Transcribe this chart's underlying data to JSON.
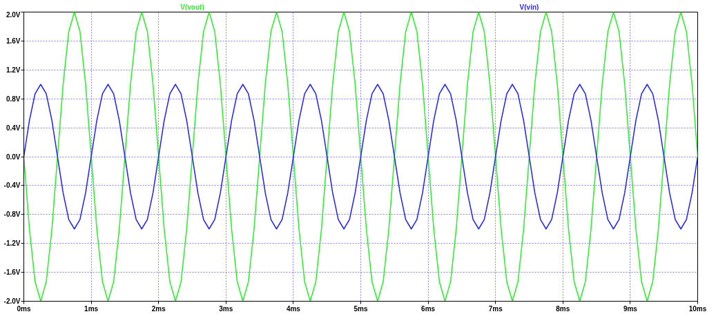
{
  "chart_data": {
    "type": "line",
    "grid": true,
    "marker": "none",
    "line_style": "solid",
    "xlim": [
      0,
      10
    ],
    "ylim": [
      -2,
      2
    ],
    "xticks": [
      {
        "value": 0,
        "label": "0ms"
      },
      {
        "value": 1,
        "label": "1ms"
      },
      {
        "value": 2,
        "label": "2ms"
      },
      {
        "value": 3,
        "label": "3ms"
      },
      {
        "value": 4,
        "label": "4ms"
      },
      {
        "value": 5,
        "label": "5ms"
      },
      {
        "value": 6,
        "label": "6ms"
      },
      {
        "value": 7,
        "label": "7ms"
      },
      {
        "value": 8,
        "label": "8ms"
      },
      {
        "value": 9,
        "label": "9ms"
      },
      {
        "value": 10,
        "label": "10ms"
      }
    ],
    "yticks": [
      {
        "value": -2.0,
        "label": "-2.0V"
      },
      {
        "value": -1.6,
        "label": "-1.6V"
      },
      {
        "value": -1.2,
        "label": "-1.2V"
      },
      {
        "value": -0.8,
        "label": "-0.8V"
      },
      {
        "value": -0.4,
        "label": "-0.4V"
      },
      {
        "value": 0.0,
        "label": "0.0V"
      },
      {
        "value": 0.4,
        "label": "0.4V"
      },
      {
        "value": 0.8,
        "label": "0.8V"
      },
      {
        "value": 1.2,
        "label": "1.2V"
      },
      {
        "value": 1.6,
        "label": "1.6V"
      },
      {
        "value": 2.0,
        "label": "2.0V"
      }
    ],
    "x": [
      0,
      0.083,
      0.167,
      0.25,
      0.333,
      0.417,
      0.5,
      0.583,
      0.667,
      0.75,
      0.833,
      0.917,
      1,
      1.083,
      1.167,
      1.25,
      1.333,
      1.417,
      1.5,
      1.583,
      1.667,
      1.75,
      1.833,
      1.917,
      2,
      2.083,
      2.167,
      2.25,
      2.333,
      2.417,
      2.5,
      2.583,
      2.667,
      2.75,
      2.833,
      2.917,
      3,
      3.083,
      3.167,
      3.25,
      3.333,
      3.417,
      3.5,
      3.583,
      3.667,
      3.75,
      3.833,
      3.917,
      4,
      4.083,
      4.167,
      4.25,
      4.333,
      4.417,
      4.5,
      4.583,
      4.667,
      4.75,
      4.833,
      4.917,
      5,
      5.083,
      5.167,
      5.25,
      5.333,
      5.417,
      5.5,
      5.583,
      5.667,
      5.75,
      5.833,
      5.917,
      6,
      6.083,
      6.167,
      6.25,
      6.333,
      6.417,
      6.5,
      6.583,
      6.667,
      6.75,
      6.833,
      6.917,
      7,
      7.083,
      7.167,
      7.25,
      7.333,
      7.417,
      7.5,
      7.583,
      7.667,
      7.75,
      7.833,
      7.917,
      8,
      8.083,
      8.167,
      8.25,
      8.333,
      8.417,
      8.5,
      8.583,
      8.667,
      8.75,
      8.833,
      8.917,
      9,
      9.083,
      9.167,
      9.25,
      9.333,
      9.417,
      9.5,
      9.583,
      9.667,
      9.75,
      9.833,
      9.917,
      10
    ],
    "series": [
      {
        "name": "V(vout)",
        "color": "#33ee33",
        "values": [
          0,
          -1,
          -1.73,
          -2,
          -1.73,
          -1,
          0,
          1,
          1.73,
          2,
          1.73,
          1,
          0,
          -1,
          -1.73,
          -2,
          -1.73,
          -1,
          0,
          1,
          1.73,
          2,
          1.73,
          1,
          0,
          -1,
          -1.73,
          -2,
          -1.73,
          -1,
          0,
          1,
          1.73,
          2,
          1.73,
          1,
          0,
          -1,
          -1.73,
          -2,
          -1.73,
          -1,
          0,
          1,
          1.73,
          2,
          1.73,
          1,
          0,
          -1,
          -1.73,
          -2,
          -1.73,
          -1,
          0,
          1,
          1.73,
          2,
          1.73,
          1,
          0,
          -1,
          -1.73,
          -2,
          -1.73,
          -1,
          0,
          1,
          1.73,
          2,
          1.73,
          1,
          0,
          -1,
          -1.73,
          -2,
          -1.73,
          -1,
          0,
          1,
          1.73,
          2,
          1.73,
          1,
          0,
          -1,
          -1.73,
          -2,
          -1.73,
          -1,
          0,
          1,
          1.73,
          2,
          1.73,
          1,
          0,
          -1,
          -1.73,
          -2,
          -1.73,
          -1,
          0,
          1,
          1.73,
          2,
          1.73,
          1,
          0,
          -1,
          -1.73,
          -2,
          -1.73,
          -1,
          0,
          1,
          1.73,
          2,
          1.73,
          1,
          0
        ]
      },
      {
        "name": "V(vin)",
        "color": "#2b2bee",
        "values": [
          0,
          0.5,
          0.87,
          1,
          0.87,
          0.5,
          0,
          -0.5,
          -0.87,
          -1,
          -0.87,
          -0.5,
          0,
          0.5,
          0.87,
          1,
          0.87,
          0.5,
          0,
          -0.5,
          -0.87,
          -1,
          -0.87,
          -0.5,
          0,
          0.5,
          0.87,
          1,
          0.87,
          0.5,
          0,
          -0.5,
          -0.87,
          -1,
          -0.87,
          -0.5,
          0,
          0.5,
          0.87,
          1,
          0.87,
          0.5,
          0,
          -0.5,
          -0.87,
          -1,
          -0.87,
          -0.5,
          0,
          0.5,
          0.87,
          1,
          0.87,
          0.5,
          0,
          -0.5,
          -0.87,
          -1,
          -0.87,
          -0.5,
          0,
          0.5,
          0.87,
          1,
          0.87,
          0.5,
          0,
          -0.5,
          -0.87,
          -1,
          -0.87,
          -0.5,
          0,
          0.5,
          0.87,
          1,
          0.87,
          0.5,
          0,
          -0.5,
          -0.87,
          -1,
          -0.87,
          -0.5,
          0,
          0.5,
          0.87,
          1,
          0.87,
          0.5,
          0,
          -0.5,
          -0.87,
          -1,
          -0.87,
          -0.5,
          0,
          0.5,
          0.87,
          1,
          0.87,
          0.5,
          0,
          -0.5,
          -0.87,
          -1,
          -0.87,
          -0.5,
          0,
          0.5,
          0.87,
          1,
          0.87,
          0.5,
          0,
          -0.5,
          -0.87,
          -1,
          -0.87,
          -0.5,
          0
        ]
      }
    ]
  }
}
